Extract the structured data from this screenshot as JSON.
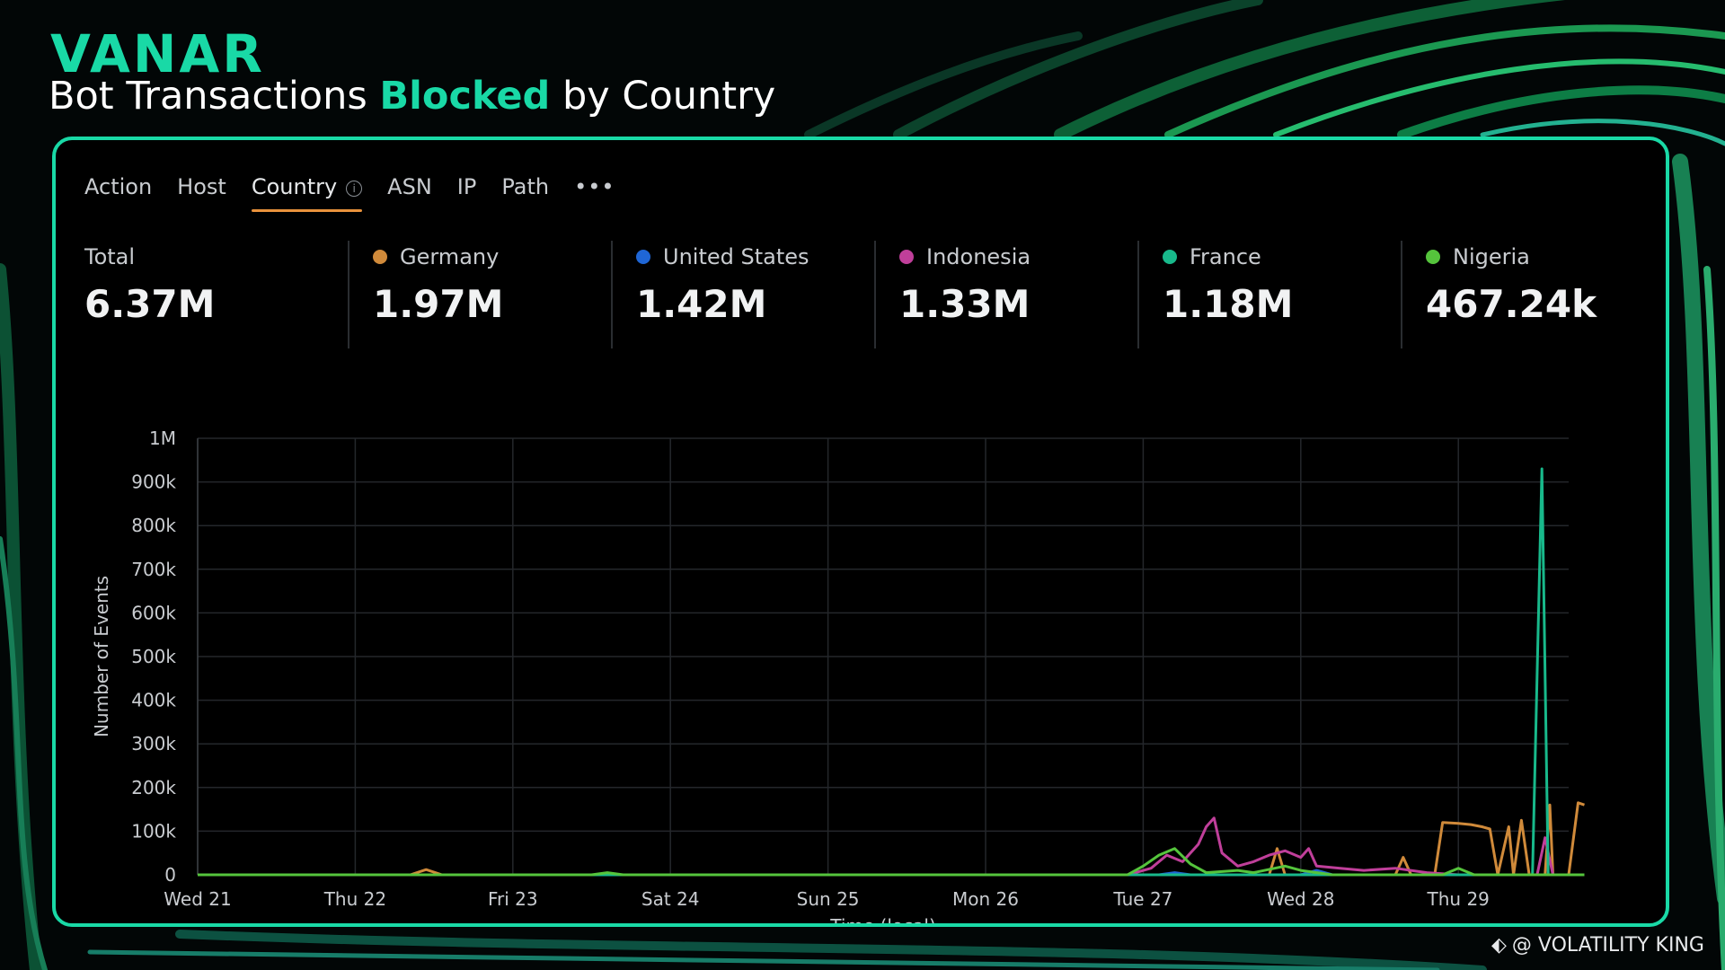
{
  "brand": {
    "logo": "VANAR"
  },
  "title": {
    "prefix": "Bot Transactions ",
    "highlight": "Blocked",
    "suffix": " by Country"
  },
  "tabs": [
    {
      "label": "Action",
      "active": false
    },
    {
      "label": "Host",
      "active": false
    },
    {
      "label": "Country",
      "active": true
    },
    {
      "label": "ASN",
      "active": false
    },
    {
      "label": "IP",
      "active": false
    },
    {
      "label": "Path",
      "active": false
    }
  ],
  "more_label": "•••",
  "info_glyph": "i",
  "stats": [
    {
      "label": "Total",
      "value": "6.37M",
      "color": null
    },
    {
      "label": "Germany",
      "value": "1.97M",
      "color": "#d08a3a"
    },
    {
      "label": "United States",
      "value": "1.42M",
      "color": "#1f66d6"
    },
    {
      "label": "Indonesia",
      "value": "1.33M",
      "color": "#c03f9a"
    },
    {
      "label": "France",
      "value": "1.18M",
      "color": "#18b98b"
    },
    {
      "label": "Nigeria",
      "value": "467.24k",
      "color": "#55c43c"
    }
  ],
  "chart_data": {
    "type": "line",
    "xlabel": "Time (local)",
    "ylabel": "Number of Events",
    "ylim": [
      0,
      1000000
    ],
    "yticks": [
      "0",
      "100k",
      "200k",
      "300k",
      "400k",
      "500k",
      "600k",
      "700k",
      "800k",
      "900k",
      "1M"
    ],
    "xlim": [
      0,
      8.7
    ],
    "xticks": [
      "Wed 21",
      "Thu 22",
      "Fri 23",
      "Sat 24",
      "Sun 25",
      "Mon 26",
      "Tue 27",
      "Wed 28",
      "Thu 29"
    ],
    "grid": true,
    "series": [
      {
        "name": "Germany",
        "color": "#d08a3a",
        "points": [
          [
            0,
            0
          ],
          [
            1.35,
            0
          ],
          [
            1.45,
            12000
          ],
          [
            1.55,
            0
          ],
          [
            5.9,
            0
          ],
          [
            6.8,
            0
          ],
          [
            6.85,
            60000
          ],
          [
            6.9,
            0
          ],
          [
            7.6,
            0
          ],
          [
            7.65,
            40000
          ],
          [
            7.7,
            0
          ],
          [
            7.85,
            0
          ],
          [
            7.9,
            120000
          ],
          [
            8.0,
            118000
          ],
          [
            8.08,
            115000
          ],
          [
            8.15,
            110000
          ],
          [
            8.2,
            105000
          ],
          [
            8.25,
            0
          ],
          [
            8.32,
            110000
          ],
          [
            8.35,
            0
          ],
          [
            8.4,
            125000
          ],
          [
            8.45,
            0
          ],
          [
            8.55,
            0
          ],
          [
            8.58,
            160000
          ],
          [
            8.6,
            0
          ],
          [
            8.6,
            0
          ],
          [
            8.7,
            0
          ],
          [
            8.76,
            165000
          ],
          [
            8.8,
            160000
          ]
        ]
      },
      {
        "name": "United States",
        "color": "#1f66d6",
        "points": [
          [
            0,
            0
          ],
          [
            5.5,
            0
          ],
          [
            6.1,
            0
          ],
          [
            6.2,
            5000
          ],
          [
            6.3,
            0
          ],
          [
            7.0,
            0
          ],
          [
            7.1,
            10000
          ],
          [
            7.2,
            0
          ],
          [
            8.8,
            0
          ]
        ]
      },
      {
        "name": "Indonesia",
        "color": "#c03f9a",
        "points": [
          [
            0,
            0
          ],
          [
            5.9,
            0
          ],
          [
            6.05,
            15000
          ],
          [
            6.15,
            45000
          ],
          [
            6.25,
            30000
          ],
          [
            6.35,
            70000
          ],
          [
            6.4,
            110000
          ],
          [
            6.45,
            130000
          ],
          [
            6.5,
            50000
          ],
          [
            6.6,
            20000
          ],
          [
            6.7,
            30000
          ],
          [
            6.8,
            45000
          ],
          [
            6.9,
            55000
          ],
          [
            7.0,
            40000
          ],
          [
            7.05,
            60000
          ],
          [
            7.1,
            20000
          ],
          [
            7.25,
            15000
          ],
          [
            7.4,
            10000
          ],
          [
            7.6,
            15000
          ],
          [
            7.8,
            5000
          ],
          [
            8.0,
            0
          ],
          [
            8.2,
            0
          ],
          [
            8.5,
            0
          ],
          [
            8.55,
            85000
          ],
          [
            8.6,
            0
          ],
          [
            8.8,
            0
          ]
        ]
      },
      {
        "name": "France",
        "color": "#18b98b",
        "points": [
          [
            0,
            0
          ],
          [
            8.47,
            0
          ],
          [
            8.53,
            930000
          ],
          [
            8.57,
            0
          ],
          [
            8.8,
            0
          ]
        ]
      },
      {
        "name": "Nigeria",
        "color": "#55c43c",
        "points": [
          [
            0,
            0
          ],
          [
            2.5,
            0
          ],
          [
            2.6,
            5000
          ],
          [
            2.7,
            0
          ],
          [
            5.9,
            0
          ],
          [
            6.0,
            20000
          ],
          [
            6.1,
            45000
          ],
          [
            6.2,
            60000
          ],
          [
            6.3,
            25000
          ],
          [
            6.4,
            5000
          ],
          [
            6.6,
            10000
          ],
          [
            6.7,
            5000
          ],
          [
            6.9,
            20000
          ],
          [
            7.0,
            10000
          ],
          [
            7.2,
            0
          ],
          [
            7.9,
            0
          ],
          [
            8.0,
            15000
          ],
          [
            8.1,
            0
          ],
          [
            8.8,
            0
          ]
        ]
      }
    ]
  },
  "watermark": {
    "icon": "⬖",
    "text": "@ VOLATILITY KING"
  }
}
